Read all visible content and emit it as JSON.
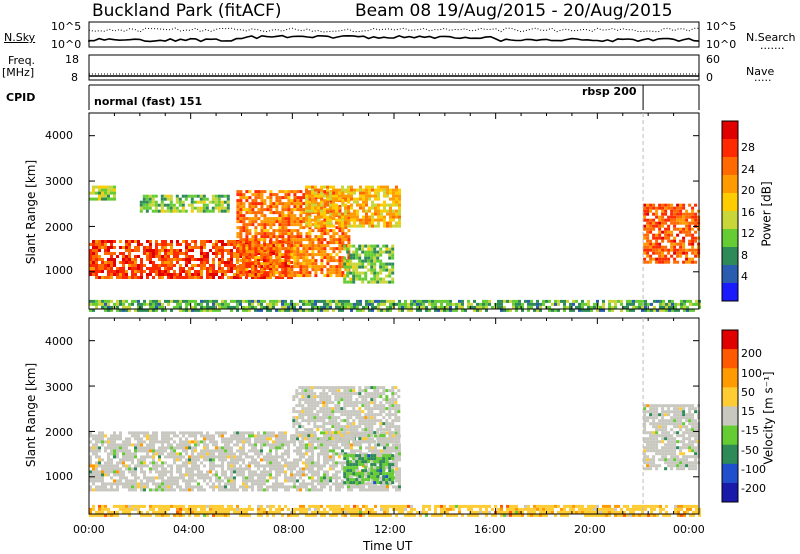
{
  "header": {
    "station": "Buckland Park (fitACF)",
    "beam_dates": "Beam 08  19/Aug/2015 - 20/Aug/2015"
  },
  "side_labels": {
    "nsky": "N.Sky",
    "freq": "Freq.",
    "freq_unit": "[MHz]",
    "cpid": "CPID",
    "nsearch": "N.Search",
    "nsearch_dots": ".......",
    "nave": "Nave",
    "nave_dots": "....."
  },
  "noise_panel": {
    "left_ticks": [
      "10^5",
      "10^0"
    ],
    "right_ticks": [
      "10^5",
      "10^0"
    ]
  },
  "freq_panel": {
    "left_ticks": [
      "18",
      "8"
    ],
    "right_ticks": [
      "60",
      "0"
    ]
  },
  "cpid_panel": {
    "modes": [
      "normal (fast) 151",
      "rbsp 200"
    ]
  },
  "axes": {
    "ylabel": "Slant Range [km]",
    "xlabel": "Time UT",
    "x_ticks": [
      "00:00",
      "04:00",
      "08:00",
      "12:00",
      "16:00",
      "20:00",
      "00:00"
    ],
    "y_ticks": [
      "1000",
      "2000",
      "3000",
      "4000"
    ]
  },
  "colorbars": {
    "power": {
      "label": "Power [dB]",
      "ticks": [
        "4",
        "8",
        "12",
        "16",
        "20",
        "24",
        "28"
      ],
      "colors": [
        "#1a1aff",
        "#2a5db0",
        "#2e8b57",
        "#66cc33",
        "#c8d63a",
        "#ffcc00",
        "#ff9a00",
        "#ff6a00",
        "#ff2a00",
        "#e00000"
      ]
    },
    "velocity": {
      "label": "Velocity [m s⁻¹]",
      "ticks": [
        "200",
        "100",
        "50",
        "15",
        "-15",
        "-50",
        "-100",
        "-200"
      ],
      "colors": [
        "#1a1aaa",
        "#1f4fcc",
        "#2e8b57",
        "#66cc33",
        "#c8c8c0",
        "#ffcc33",
        "#ff9a00",
        "#ff5a00",
        "#e00000"
      ]
    }
  },
  "chart_data": {
    "type": "heatmap",
    "title": "Buckland Park (fitACF)",
    "xlabel": "Time UT",
    "ylabel": "Slant Range [km]",
    "xlim": [
      "00:00",
      "24:00"
    ],
    "ylim": [
      180,
      4500
    ],
    "panels": [
      {
        "name": "Power [dB]",
        "regions": [
          {
            "t0": 0,
            "t1": 8.0,
            "r0": 900,
            "r1": 1700,
            "level": 0.85
          },
          {
            "t0": 5.8,
            "t1": 10.2,
            "r0": 900,
            "r1": 2800,
            "level": 0.75
          },
          {
            "t0": 8.5,
            "t1": 12.2,
            "r0": 2000,
            "r1": 2900,
            "level": 0.6
          },
          {
            "t0": 0,
            "t1": 1.0,
            "r0": 2600,
            "r1": 2900,
            "level": 0.4
          },
          {
            "t0": 2.0,
            "t1": 5.5,
            "r0": 2350,
            "r1": 2700,
            "level": 0.35
          },
          {
            "t0": 10.0,
            "t1": 12.0,
            "r0": 800,
            "r1": 1600,
            "level": 0.35
          },
          {
            "t0": 21.8,
            "t1": 24.0,
            "r0": 1200,
            "r1": 2500,
            "level": 0.8
          },
          {
            "t0": 0,
            "t1": 24.0,
            "r0": 180,
            "r1": 380,
            "level": 0.3
          }
        ]
      },
      {
        "name": "Velocity [m s-1]",
        "regions": [
          {
            "t0": 0,
            "t1": 12.2,
            "r0": 700,
            "r1": 2000,
            "level": 0.0
          },
          {
            "t0": 8.0,
            "t1": 12.2,
            "r0": 1800,
            "r1": 3000,
            "level": 0.0
          },
          {
            "t0": 10.0,
            "t1": 12.0,
            "r0": 900,
            "r1": 1500,
            "level": 0.5
          },
          {
            "t0": 21.8,
            "t1": 24.0,
            "r0": 1200,
            "r1": 2600,
            "level": 0.0
          },
          {
            "t0": 0,
            "t1": 24.0,
            "r0": 180,
            "r1": 380,
            "level": -0.4
          }
        ]
      }
    ],
    "cpid_change_hour": 21.8
  }
}
